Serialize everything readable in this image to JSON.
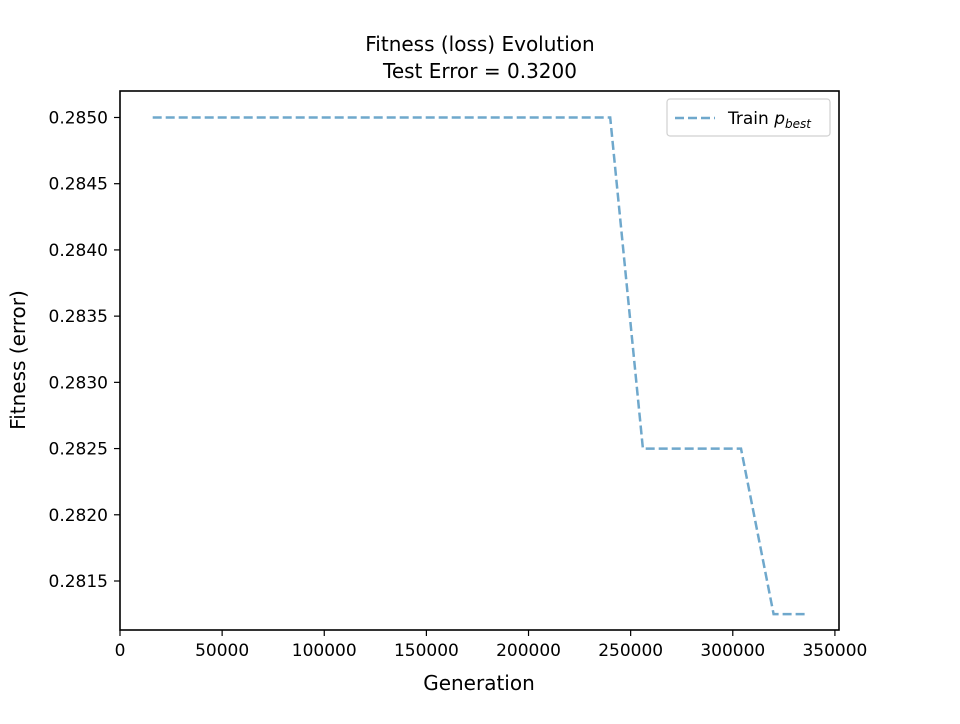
{
  "chart_data": {
    "type": "line",
    "title": "Fitness (loss) Evolution",
    "subtitle": "Test Error = 0.3200",
    "xlabel": "Generation",
    "ylabel": "Fitness (error)",
    "xlim": [
      0,
      352000
    ],
    "ylim": [
      0.28113,
      0.2852
    ],
    "x_ticks": [
      0,
      50000,
      100000,
      150000,
      200000,
      250000,
      300000,
      350000
    ],
    "x_tick_labels": [
      "0",
      "50000",
      "100000",
      "150000",
      "200000",
      "250000",
      "300000",
      "350000"
    ],
    "y_ticks": [
      0.2815,
      0.282,
      0.2825,
      0.283,
      0.2835,
      0.284,
      0.2845,
      0.285
    ],
    "y_tick_labels": [
      "0.2815",
      "0.2820",
      "0.2825",
      "0.2830",
      "0.2835",
      "0.2840",
      "0.2845",
      "0.2850"
    ],
    "grid": false,
    "legend_position": "top-right",
    "series": [
      {
        "name": "Train p_best",
        "legend_main": "Train ",
        "legend_italic": "p",
        "legend_sub": "best",
        "color": "#6fa8cc",
        "style": "dashed",
        "x": [
          16000,
          240000,
          256000,
          304000,
          320000,
          336000
        ],
        "y": [
          0.285,
          0.285,
          0.2825,
          0.2825,
          0.28125,
          0.28125
        ]
      }
    ]
  }
}
